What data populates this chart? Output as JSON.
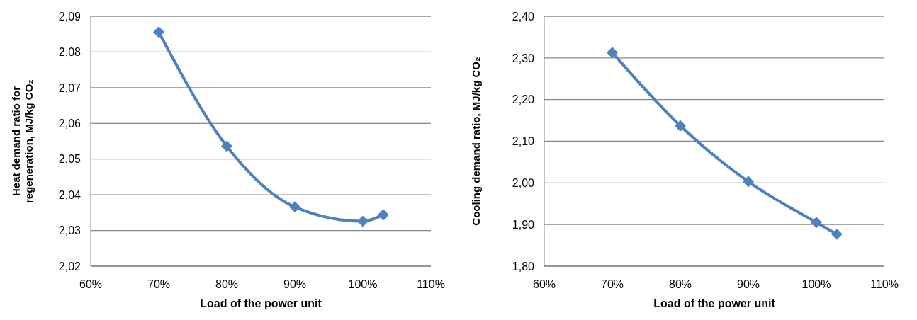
{
  "chart_data": [
    {
      "type": "line",
      "xlabel": "Load of the power unit",
      "ylabel": "Heat demand ratio for regeneration, MJ/kg CO₂",
      "x": [
        70,
        80,
        90,
        100,
        103
      ],
      "series": [
        {
          "color": "#4f81bd",
          "values": [
            2.0856,
            2.0536,
            2.0366,
            2.0326,
            2.0344
          ]
        }
      ],
      "xlim": [
        60,
        110
      ],
      "xticks": [
        {
          "value": 60,
          "label": "60%"
        },
        {
          "value": 70,
          "label": "70%"
        },
        {
          "value": 80,
          "label": "80%"
        },
        {
          "value": 90,
          "label": "90%"
        },
        {
          "value": 100,
          "label": "100%"
        },
        {
          "value": 110,
          "label": "110%"
        }
      ],
      "ylim": [
        2.02,
        2.09
      ],
      "yticks": [
        {
          "value": 2.02,
          "label": "2,02"
        },
        {
          "value": 2.03,
          "label": "2,03"
        },
        {
          "value": 2.04,
          "label": "2,04"
        },
        {
          "value": 2.05,
          "label": "2,05"
        },
        {
          "value": 2.06,
          "label": "2,06"
        },
        {
          "value": 2.07,
          "label": "2,07"
        },
        {
          "value": 2.08,
          "label": "2,08"
        },
        {
          "value": 2.09,
          "label": "2,09"
        }
      ],
      "grid": "y",
      "marker": "diamond",
      "line_style": "solid",
      "legend": false
    },
    {
      "type": "line",
      "xlabel": "Load of the power unit",
      "ylabel": "Cooling demand ratio, MJ/kg CO₂",
      "x": [
        70,
        80,
        90,
        100,
        103
      ],
      "series": [
        {
          "color": "#4f81bd",
          "values": [
            2.313,
            2.137,
            2.003,
            1.905,
            1.877
          ]
        }
      ],
      "xlim": [
        60,
        110
      ],
      "xticks": [
        {
          "value": 60,
          "label": "60%"
        },
        {
          "value": 70,
          "label": "70%"
        },
        {
          "value": 80,
          "label": "80%"
        },
        {
          "value": 90,
          "label": "90%"
        },
        {
          "value": 100,
          "label": "100%"
        },
        {
          "value": 110,
          "label": "110%"
        }
      ],
      "ylim": [
        1.8,
        2.4
      ],
      "yticks": [
        {
          "value": 1.8,
          "label": "1,80"
        },
        {
          "value": 1.9,
          "label": "1,90"
        },
        {
          "value": 2.0,
          "label": "2,00"
        },
        {
          "value": 2.1,
          "label": "2,10"
        },
        {
          "value": 2.2,
          "label": "2,20"
        },
        {
          "value": 2.3,
          "label": "2,30"
        },
        {
          "value": 2.4,
          "label": "2,40"
        }
      ],
      "grid": "y",
      "marker": "diamond",
      "line_style": "solid",
      "legend": false
    }
  ]
}
